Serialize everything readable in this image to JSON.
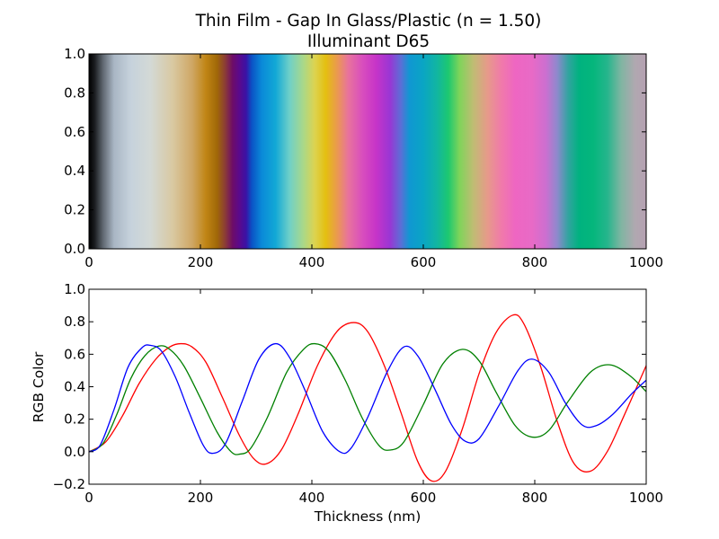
{
  "figure": {
    "title_line1": "Thin Film - Gap In Glass/Plastic (n = 1.50)",
    "title_line2": "Illuminant D65"
  },
  "chart_data": [
    {
      "type": "heatmap",
      "description": "Color strip of thin-film interference color vs. thickness",
      "xlim": [
        0,
        1000
      ],
      "ylim": [
        0.0,
        1.0
      ],
      "x_ticks": [
        "0",
        "200",
        "400",
        "600",
        "800",
        "1000"
      ],
      "y_ticks": [
        "0.0",
        "0.2",
        "0.4",
        "0.6",
        "0.8",
        "1.0"
      ],
      "grid": false,
      "color_stops": [
        {
          "x": 0,
          "color": "#000000"
        },
        {
          "x": 10,
          "color": "#1a1c1f"
        },
        {
          "x": 25,
          "color": "#5f6770"
        },
        {
          "x": 45,
          "color": "#a9b6c4"
        },
        {
          "x": 75,
          "color": "#c6d2dc"
        },
        {
          "x": 110,
          "color": "#d3d9d6"
        },
        {
          "x": 150,
          "color": "#d9c9a2"
        },
        {
          "x": 185,
          "color": "#cfa765"
        },
        {
          "x": 210,
          "color": "#c08514"
        },
        {
          "x": 230,
          "color": "#a06808"
        },
        {
          "x": 245,
          "color": "#8a3a38"
        },
        {
          "x": 258,
          "color": "#6d0c68"
        },
        {
          "x": 270,
          "color": "#5a0a8d"
        },
        {
          "x": 282,
          "color": "#3a12a5"
        },
        {
          "x": 292,
          "color": "#0b52c5"
        },
        {
          "x": 310,
          "color": "#0a8ad8"
        },
        {
          "x": 335,
          "color": "#12a8d6"
        },
        {
          "x": 360,
          "color": "#6fd0c8"
        },
        {
          "x": 385,
          "color": "#aad888"
        },
        {
          "x": 405,
          "color": "#dcd350"
        },
        {
          "x": 425,
          "color": "#e4bf10"
        },
        {
          "x": 445,
          "color": "#ea9a4e"
        },
        {
          "x": 465,
          "color": "#e8739c"
        },
        {
          "x": 490,
          "color": "#d94fbd"
        },
        {
          "x": 515,
          "color": "#c734c8"
        },
        {
          "x": 540,
          "color": "#9a36d4"
        },
        {
          "x": 560,
          "color": "#5b6fd6"
        },
        {
          "x": 575,
          "color": "#1097d2"
        },
        {
          "x": 600,
          "color": "#0aa5c4"
        },
        {
          "x": 625,
          "color": "#12b6a0"
        },
        {
          "x": 645,
          "color": "#1dc870"
        },
        {
          "x": 665,
          "color": "#7fd45a"
        },
        {
          "x": 690,
          "color": "#c0bc74"
        },
        {
          "x": 715,
          "color": "#e69a8a"
        },
        {
          "x": 740,
          "color": "#f07aaa"
        },
        {
          "x": 765,
          "color": "#ee66c2"
        },
        {
          "x": 795,
          "color": "#e86ac6"
        },
        {
          "x": 820,
          "color": "#cc6fd0"
        },
        {
          "x": 840,
          "color": "#8f89cd"
        },
        {
          "x": 860,
          "color": "#32a4a0"
        },
        {
          "x": 880,
          "color": "#00b27f"
        },
        {
          "x": 905,
          "color": "#05b67c"
        },
        {
          "x": 930,
          "color": "#25b58c"
        },
        {
          "x": 955,
          "color": "#80b5a2"
        },
        {
          "x": 980,
          "color": "#b0a8b0"
        },
        {
          "x": 1000,
          "color": "#b6a0b2"
        }
      ]
    },
    {
      "type": "line",
      "xlabel": "Thickness (nm)",
      "ylabel": "RGB Color",
      "xlim": [
        0,
        1000
      ],
      "ylim": [
        -0.2,
        1.0
      ],
      "x_ticks": [
        "0",
        "200",
        "400",
        "600",
        "800",
        "1000"
      ],
      "y_ticks": [
        "−0.2",
        "0.0",
        "0.2",
        "0.4",
        "0.6",
        "0.8",
        "1.0"
      ],
      "grid": false,
      "legend": "none",
      "series": [
        {
          "color": "#ff0000",
          "points": [
            [
              0,
              0.0
            ],
            [
              30,
              0.06
            ],
            [
              60,
              0.22
            ],
            [
              90,
              0.42
            ],
            [
              120,
              0.57
            ],
            [
              145,
              0.645
            ],
            [
              165,
              0.665
            ],
            [
              185,
              0.645
            ],
            [
              210,
              0.55
            ],
            [
              240,
              0.33
            ],
            [
              270,
              0.1
            ],
            [
              295,
              -0.04
            ],
            [
              318,
              -0.075
            ],
            [
              345,
              0.01
            ],
            [
              375,
              0.23
            ],
            [
              410,
              0.53
            ],
            [
              445,
              0.74
            ],
            [
              475,
              0.795
            ],
            [
              500,
              0.74
            ],
            [
              530,
              0.53
            ],
            [
              560,
              0.24
            ],
            [
              590,
              -0.06
            ],
            [
              615,
              -0.18
            ],
            [
              640,
              -0.12
            ],
            [
              670,
              0.14
            ],
            [
              700,
              0.48
            ],
            [
              730,
              0.73
            ],
            [
              760,
              0.84
            ],
            [
              780,
              0.79
            ],
            [
              810,
              0.53
            ],
            [
              840,
              0.19
            ],
            [
              870,
              -0.07
            ],
            [
              900,
              -0.12
            ],
            [
              930,
              0.0
            ],
            [
              960,
              0.22
            ],
            [
              1000,
              0.53
            ]
          ]
        },
        {
          "color": "#008000",
          "points": [
            [
              0,
              0.0
            ],
            [
              25,
              0.05
            ],
            [
              50,
              0.23
            ],
            [
              75,
              0.45
            ],
            [
              100,
              0.59
            ],
            [
              125,
              0.65
            ],
            [
              145,
              0.63
            ],
            [
              170,
              0.53
            ],
            [
              200,
              0.33
            ],
            [
              230,
              0.12
            ],
            [
              255,
              0.0
            ],
            [
              270,
              -0.015
            ],
            [
              290,
              0.02
            ],
            [
              320,
              0.21
            ],
            [
              355,
              0.49
            ],
            [
              385,
              0.63
            ],
            [
              405,
              0.665
            ],
            [
              430,
              0.62
            ],
            [
              460,
              0.44
            ],
            [
              490,
              0.21
            ],
            [
              520,
              0.04
            ],
            [
              540,
              0.01
            ],
            [
              565,
              0.06
            ],
            [
              600,
              0.29
            ],
            [
              635,
              0.54
            ],
            [
              670,
              0.63
            ],
            [
              700,
              0.56
            ],
            [
              730,
              0.37
            ],
            [
              765,
              0.16
            ],
            [
              795,
              0.09
            ],
            [
              825,
              0.13
            ],
            [
              860,
              0.31
            ],
            [
              900,
              0.49
            ],
            [
              935,
              0.535
            ],
            [
              970,
              0.47
            ],
            [
              1000,
              0.37
            ]
          ]
        },
        {
          "color": "#0000ff",
          "points": [
            [
              0,
              0.0
            ],
            [
              20,
              0.04
            ],
            [
              45,
              0.26
            ],
            [
              70,
              0.52
            ],
            [
              95,
              0.64
            ],
            [
              110,
              0.655
            ],
            [
              130,
              0.62
            ],
            [
              155,
              0.46
            ],
            [
              180,
              0.24
            ],
            [
              205,
              0.04
            ],
            [
              222,
              -0.01
            ],
            [
              245,
              0.05
            ],
            [
              275,
              0.31
            ],
            [
              305,
              0.57
            ],
            [
              335,
              0.665
            ],
            [
              360,
              0.58
            ],
            [
              390,
              0.36
            ],
            [
              420,
              0.12
            ],
            [
              450,
              0.0
            ],
            [
              470,
              0.02
            ],
            [
              500,
              0.21
            ],
            [
              535,
              0.49
            ],
            [
              565,
              0.645
            ],
            [
              590,
              0.59
            ],
            [
              620,
              0.39
            ],
            [
              650,
              0.17
            ],
            [
              675,
              0.065
            ],
            [
              700,
              0.08
            ],
            [
              735,
              0.28
            ],
            [
              770,
              0.5
            ],
            [
              795,
              0.57
            ],
            [
              825,
              0.49
            ],
            [
              855,
              0.3
            ],
            [
              885,
              0.165
            ],
            [
              910,
              0.16
            ],
            [
              940,
              0.23
            ],
            [
              975,
              0.36
            ],
            [
              1000,
              0.44
            ]
          ]
        }
      ]
    }
  ]
}
